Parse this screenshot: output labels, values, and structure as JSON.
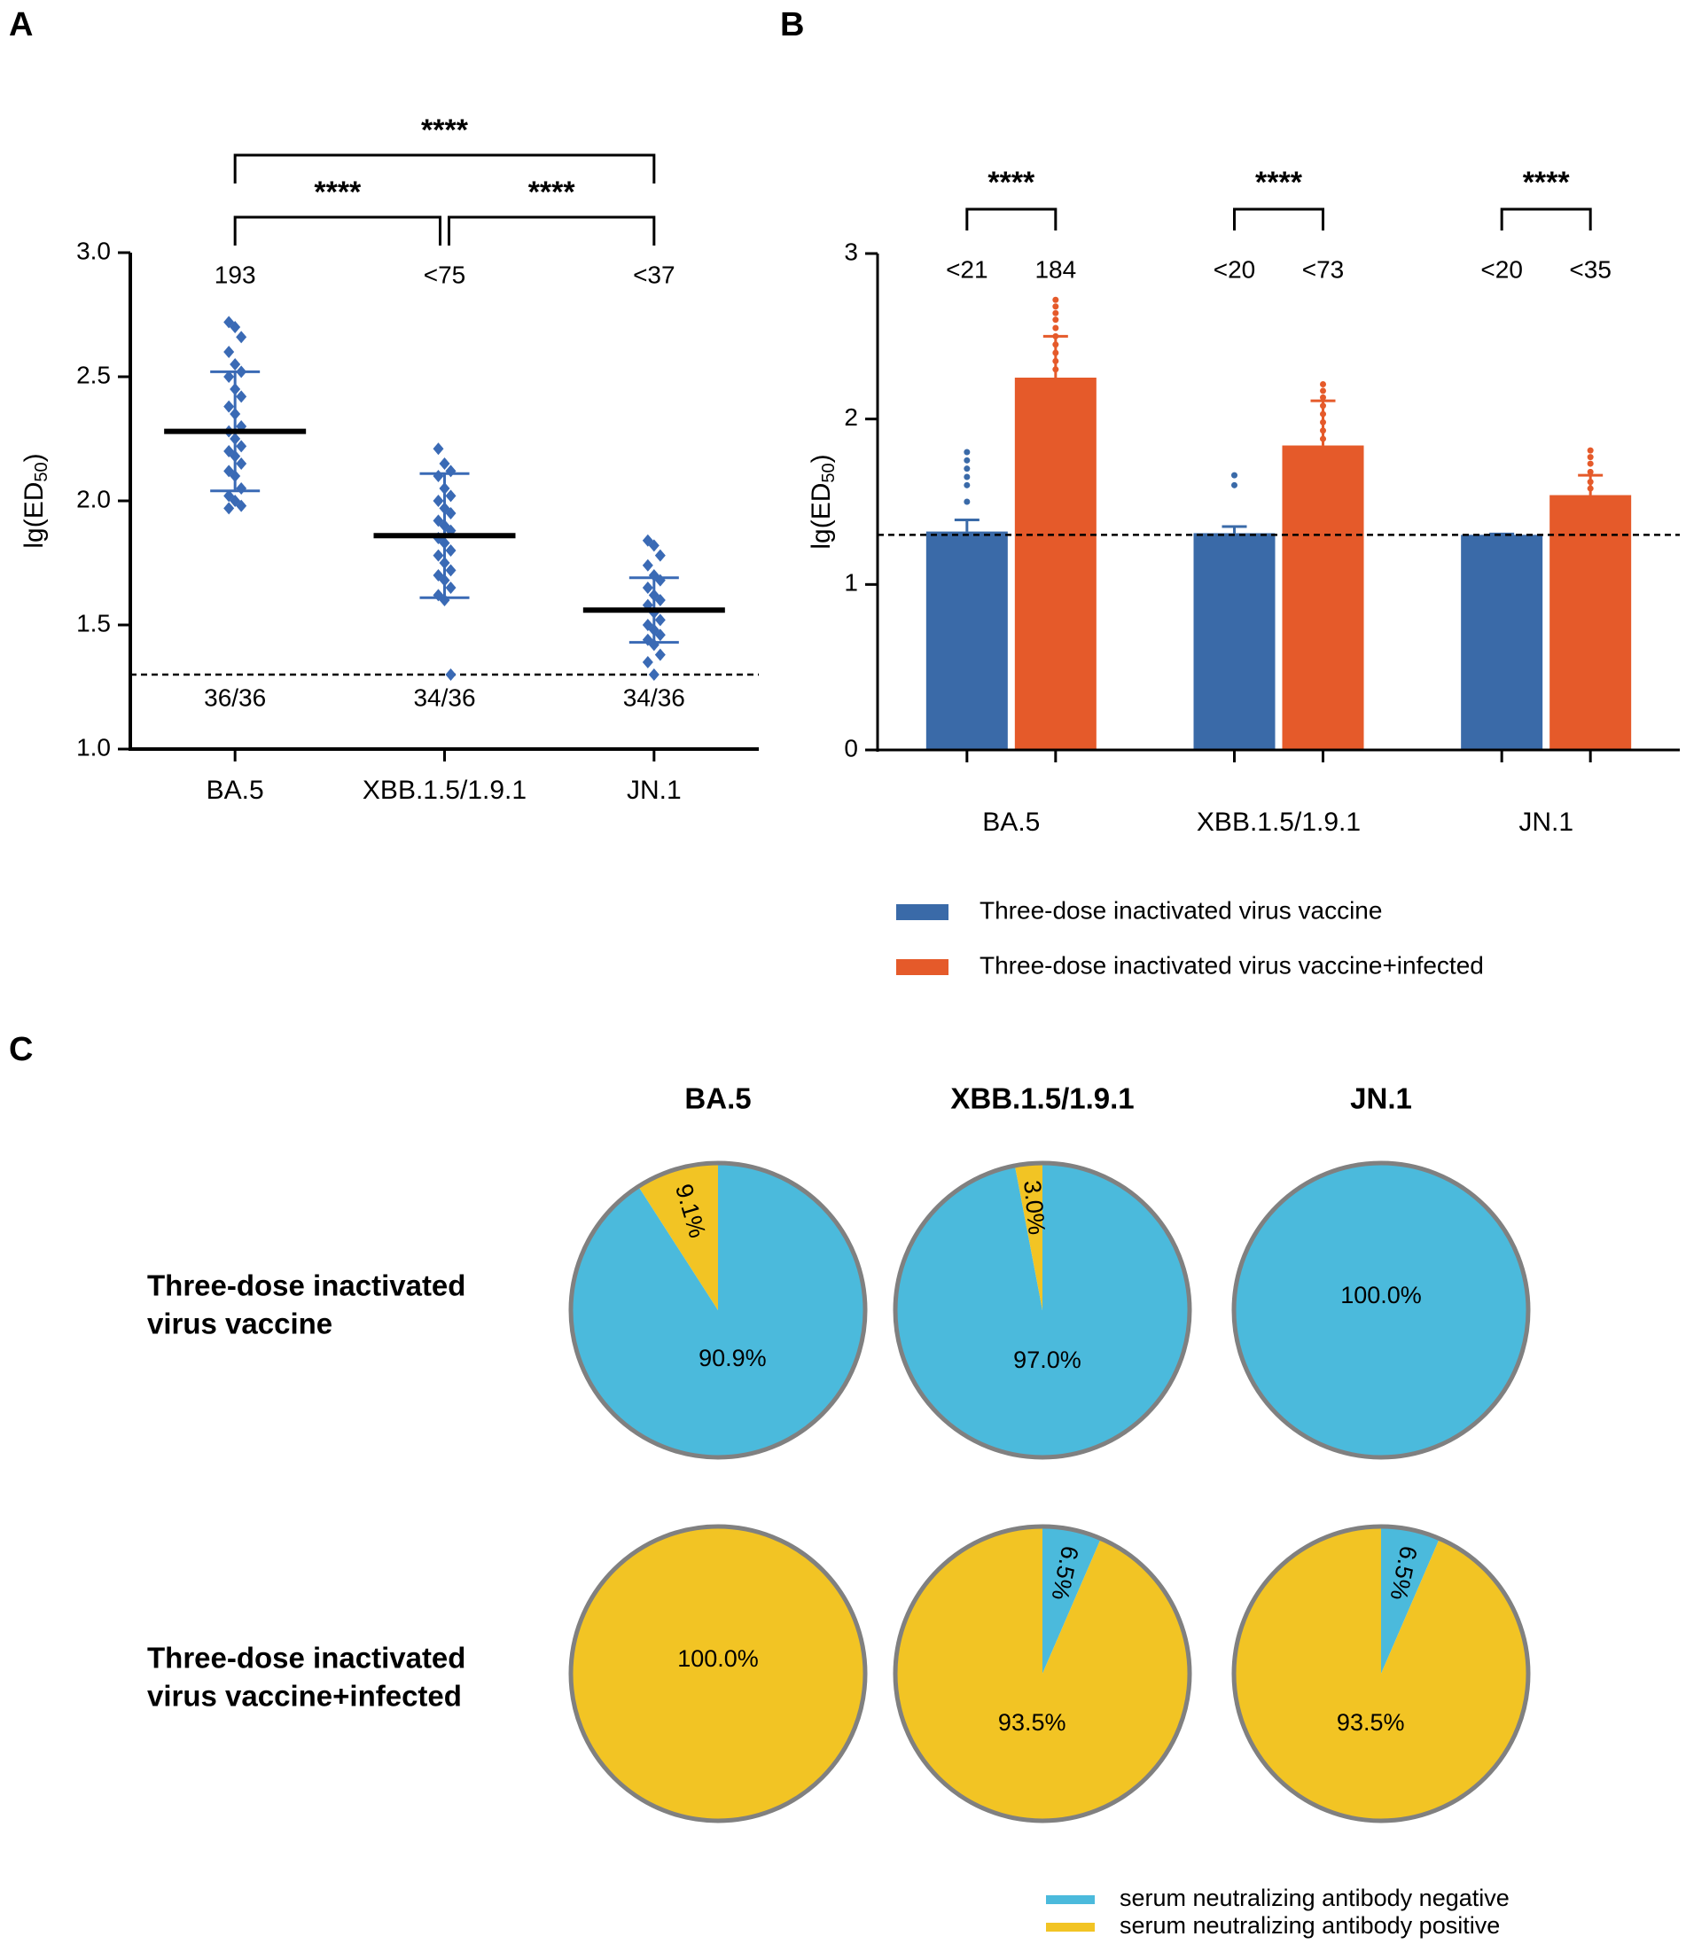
{
  "chart_data": [
    {
      "type": "dot",
      "panel": "A",
      "ylabel": [
        "lg(ED",
        "50",
        ")"
      ],
      "categories": [
        "BA.5",
        "XBB.1.5/1.9.1",
        "JN.1"
      ],
      "points": [
        [
          2.72,
          2.7,
          2.66,
          2.6,
          2.55,
          2.52,
          2.5,
          2.45,
          2.42,
          2.38,
          2.35,
          2.3,
          2.28,
          2.25,
          2.22,
          2.2,
          2.18,
          2.15,
          2.12,
          2.1,
          2.05,
          2.02,
          2.0,
          1.98,
          1.97
        ],
        [
          2.21,
          2.15,
          2.12,
          2.1,
          2.05,
          2.02,
          2.0,
          1.97,
          1.95,
          1.92,
          1.9,
          1.88,
          1.85,
          1.83,
          1.8,
          1.78,
          1.75,
          1.72,
          1.7,
          1.68,
          1.65,
          1.62,
          1.6,
          1.3
        ],
        [
          1.84,
          1.82,
          1.78,
          1.74,
          1.7,
          1.68,
          1.65,
          1.62,
          1.6,
          1.58,
          1.55,
          1.52,
          1.5,
          1.48,
          1.46,
          1.44,
          1.42,
          1.38,
          1.35,
          1.3
        ]
      ],
      "means": [
        2.28,
        1.86,
        1.56
      ],
      "errors": [
        0.24,
        0.25,
        0.13
      ],
      "color": "#3a6ab5",
      "mean_color": "#000000",
      "threshold": 1.3,
      "ylim": [
        1.0,
        3.0
      ],
      "yticks": [
        {
          "value": 1.0,
          "label": "1.0"
        },
        1.5,
        {
          "value": 2.0,
          "label": "2.0"
        },
        2.5,
        {
          "value": 3.0,
          "label": "3.0"
        }
      ],
      "top_labels": [
        "193",
        "<75",
        "<37"
      ],
      "bottom_labels": [
        "36/36",
        "34/36",
        "34/36"
      ],
      "comparisons": [
        {
          "pair": [
            0,
            2
          ],
          "label": "****"
        },
        {
          "pair": [
            0,
            1
          ],
          "label": "****"
        },
        {
          "pair": [
            1,
            2
          ],
          "label": "****"
        }
      ]
    },
    {
      "type": "bar",
      "panel": "B",
      "ylabel": [
        "lg(ED",
        "50",
        ")"
      ],
      "categories": [
        "BA.5",
        "XBB.1.5/1.9.1",
        "JN.1"
      ],
      "series": [
        {
          "name": "Three-dose inactivated virus vaccine",
          "color": "#3a6aa8",
          "values": [
            1.32,
            1.31,
            1.3
          ],
          "errors": [
            0.07,
            0.04,
            0.005
          ],
          "points": [
            [
              1.8,
              1.75,
              1.7,
              1.65,
              1.6,
              1.5
            ],
            [
              1.66,
              1.6
            ],
            []
          ],
          "top_labels": [
            "<21",
            "<20",
            "<20"
          ]
        },
        {
          "name": "Three-dose inactivated virus vaccine+infected",
          "color": "#e55a2a",
          "values": [
            2.25,
            1.84,
            1.54
          ],
          "errors": [
            0.25,
            0.27,
            0.12
          ],
          "points": [
            [
              2.72,
              2.68,
              2.64,
              2.6,
              2.55,
              2.5,
              2.45,
              2.4,
              2.35,
              2.3
            ],
            [
              2.21,
              2.17,
              2.13,
              2.08,
              2.03,
              1.98,
              1.93,
              1.88
            ],
            [
              1.81,
              1.77,
              1.73,
              1.68,
              1.62,
              1.58
            ]
          ],
          "top_labels": [
            "184",
            "<73",
            "<35"
          ]
        }
      ],
      "threshold": 1.3,
      "ylim": [
        0,
        3
      ],
      "yticks": [
        0,
        1,
        2,
        3
      ],
      "significance": [
        "****",
        "****",
        "****"
      ]
    },
    {
      "type": "pie",
      "panel": "C",
      "columns": [
        "BA.5",
        "XBB.1.5/1.9.1",
        "JN.1"
      ],
      "series": [
        {
          "name": "serum neutralizing antibody negative",
          "color": "#4bbadc"
        },
        {
          "name": "serum neutralizing antibody positive",
          "color": "#f2c424"
        }
      ],
      "rows": [
        {
          "label": [
            "Three-dose inactivated",
            "virus vaccine"
          ],
          "pies": [
            {
              "values": [
                90.9,
                9.1
              ],
              "value_labels": [
                "90.9%",
                "9.1%"
              ]
            },
            {
              "values": [
                97.0,
                3.0
              ],
              "value_labels": [
                "97.0%",
                "3.0%"
              ]
            },
            {
              "values": [
                100.0,
                0
              ],
              "value_labels": [
                "100.0%",
                null
              ]
            }
          ]
        },
        {
          "label": [
            "Three-dose inactivated",
            "virus vaccine+infected"
          ],
          "pies": [
            {
              "values": [
                0,
                100.0
              ],
              "value_labels": [
                null,
                "100.0%"
              ]
            },
            {
              "values": [
                6.5,
                93.5
              ],
              "value_labels": [
                "6.5%",
                "93.5%"
              ]
            },
            {
              "values": [
                6.5,
                93.5
              ],
              "value_labels": [
                "6.5%",
                "93.5%"
              ]
            }
          ]
        }
      ]
    }
  ]
}
